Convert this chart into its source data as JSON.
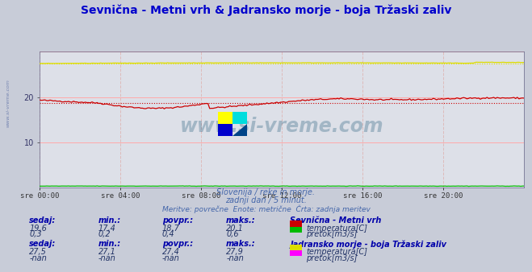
{
  "title": "Sevnična - Metni vrh & Jadransko morje - boja Tržaski zaliv",
  "title_color": "#0000cc",
  "bg_color": "#c8ccd8",
  "plot_bg_color": "#dde0e8",
  "grid_color_h": "#ffaaaa",
  "grid_color_v": "#ddaaaa",
  "xlim": [
    0,
    288
  ],
  "ylim": [
    0,
    30
  ],
  "yticks": [
    10,
    20
  ],
  "xtick_labels": [
    "sre 00:00",
    "sre 04:00",
    "sre 08:00",
    "sre 12:00",
    "sre 16:00",
    "sre 20:00"
  ],
  "xtick_positions": [
    0,
    48,
    96,
    144,
    192,
    240
  ],
  "subtitle1": "Slovenija / reke in morje.",
  "subtitle2": "zadnji dan / 5 minut.",
  "subtitle3": "Meritve: povrečne  Enote: metrične  Črta: zadnja meritev",
  "subtitle_color": "#4466aa",
  "watermark_text": "www.si-vreme.com",
  "table_header_color": "#0000aa",
  "table_value_color": "#223366",
  "station1_name": "Sevnična - Metni vrh",
  "station1_temp_color": "#cc0000",
  "station1_flow_color": "#00bb00",
  "station1_sedaj": "19,6",
  "station1_min": "17,4",
  "station1_povpr": "18,7",
  "station1_maks": "20,1",
  "station1_flow_sedaj": "0,3",
  "station1_flow_min": "0,2",
  "station1_flow_povpr": "0,4",
  "station1_flow_maks": "0,6",
  "station2_name": "Jadransko morje - boja Tržaski zaliv",
  "station2_temp_color": "#dddd00",
  "station2_flow_color": "#ff00ff",
  "station2_sedaj": "27,5",
  "station2_min": "27,1",
  "station2_povpr": "27,4",
  "station2_maks": "27,9",
  "station2_flow_sedaj": "-nan",
  "station2_flow_min": "-nan",
  "station2_flow_povpr": "-nan",
  "station2_flow_maks": "-nan",
  "avg_temp1": 18.7,
  "avg_temp2": 27.4,
  "flow1_avg": 0.4,
  "temp1_min_val": 17.4,
  "temp1_max_val": 20.1,
  "temp2_val": 27.4,
  "temp2_min_val": 27.1,
  "temp2_max_val": 27.9
}
